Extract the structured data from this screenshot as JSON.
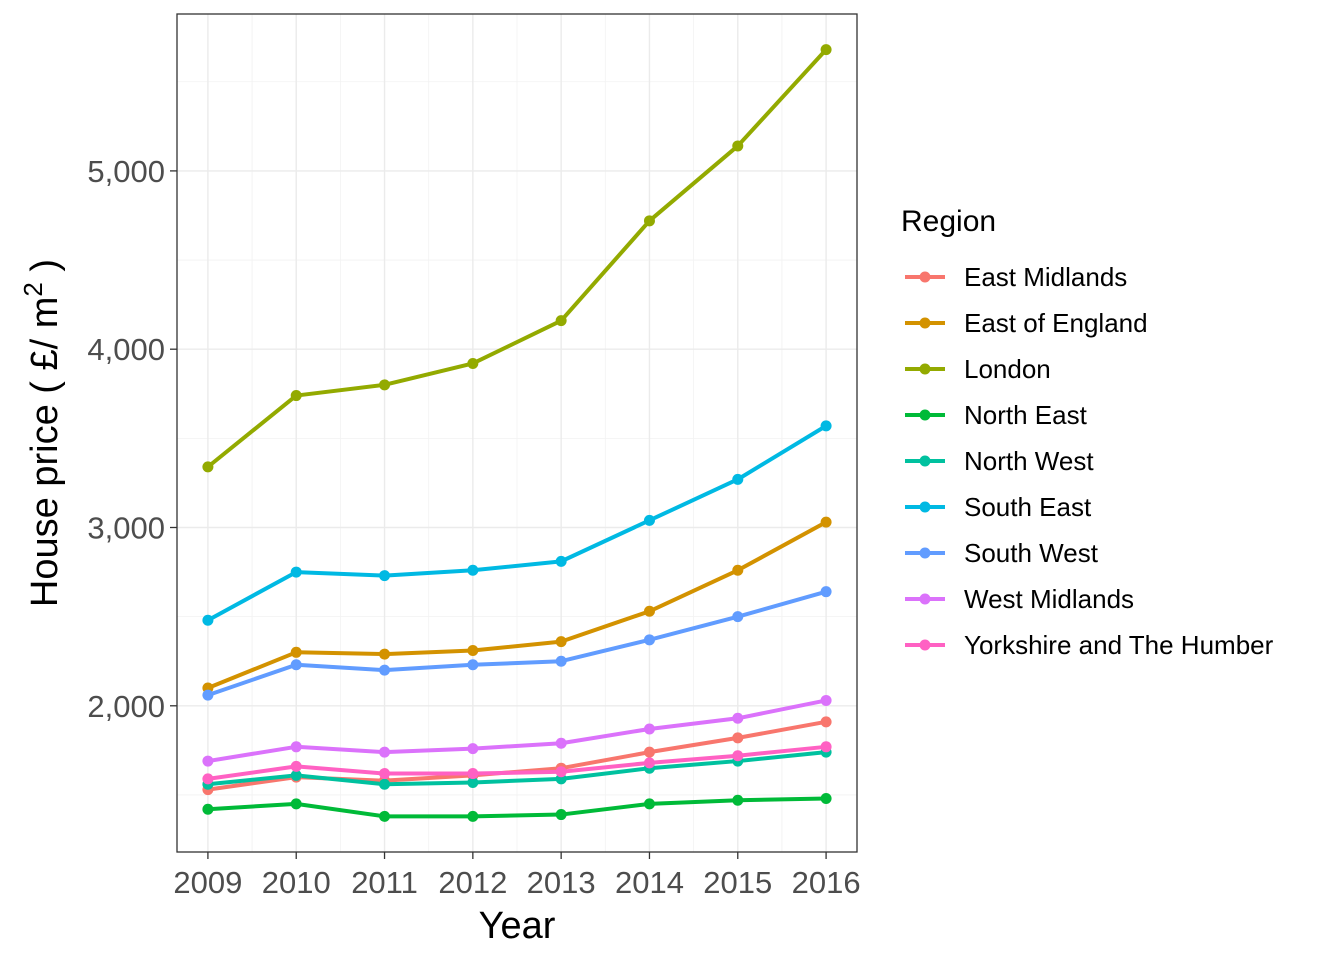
{
  "chart_data": {
    "type": "line",
    "title": "",
    "xlabel": "Year",
    "ylabel_main": "House price ( £/ m",
    "ylabel_superscript": "2",
    "ylabel_close": " )",
    "x": [
      2009,
      2010,
      2011,
      2012,
      2013,
      2014,
      2015,
      2016
    ],
    "x_tick_labels": [
      "2009",
      "2010",
      "2011",
      "2012",
      "2013",
      "2014",
      "2015",
      "2016"
    ],
    "y_ticks": [
      2000,
      3000,
      4000,
      5000
    ],
    "y_tick_labels": [
      "2,000",
      "3,000",
      "4,000",
      "5,000"
    ],
    "ylim": [
      1180,
      5880
    ],
    "grid": true,
    "legend_title": "Region",
    "legend_position": "right",
    "series": [
      {
        "name": "East Midlands",
        "color": "#F8766D",
        "values": [
          1530,
          1600,
          1580,
          1610,
          1650,
          1740,
          1820,
          1910
        ]
      },
      {
        "name": "East of England",
        "color": "#D39200",
        "values": [
          2100,
          2300,
          2290,
          2310,
          2360,
          2530,
          2760,
          3030
        ]
      },
      {
        "name": "London",
        "color": "#93AA00",
        "values": [
          3340,
          3740,
          3800,
          3920,
          4160,
          4720,
          5140,
          5680
        ]
      },
      {
        "name": "North East",
        "color": "#00BA38",
        "values": [
          1420,
          1450,
          1380,
          1380,
          1390,
          1450,
          1470,
          1480
        ]
      },
      {
        "name": "North West",
        "color": "#00C19F",
        "values": [
          1560,
          1610,
          1560,
          1570,
          1590,
          1650,
          1690,
          1740
        ]
      },
      {
        "name": "South East",
        "color": "#00B9E3",
        "values": [
          2480,
          2750,
          2730,
          2760,
          2810,
          3040,
          3270,
          3570
        ]
      },
      {
        "name": "South West",
        "color": "#619CFF",
        "values": [
          2060,
          2230,
          2200,
          2230,
          2250,
          2370,
          2500,
          2640
        ]
      },
      {
        "name": "West Midlands",
        "color": "#DB72FB",
        "values": [
          1690,
          1770,
          1740,
          1760,
          1790,
          1870,
          1930,
          2030
        ]
      },
      {
        "name": "Yorkshire and The Humber",
        "color": "#FF61C3",
        "values": [
          1590,
          1660,
          1620,
          1620,
          1630,
          1680,
          1720,
          1770
        ]
      }
    ]
  }
}
